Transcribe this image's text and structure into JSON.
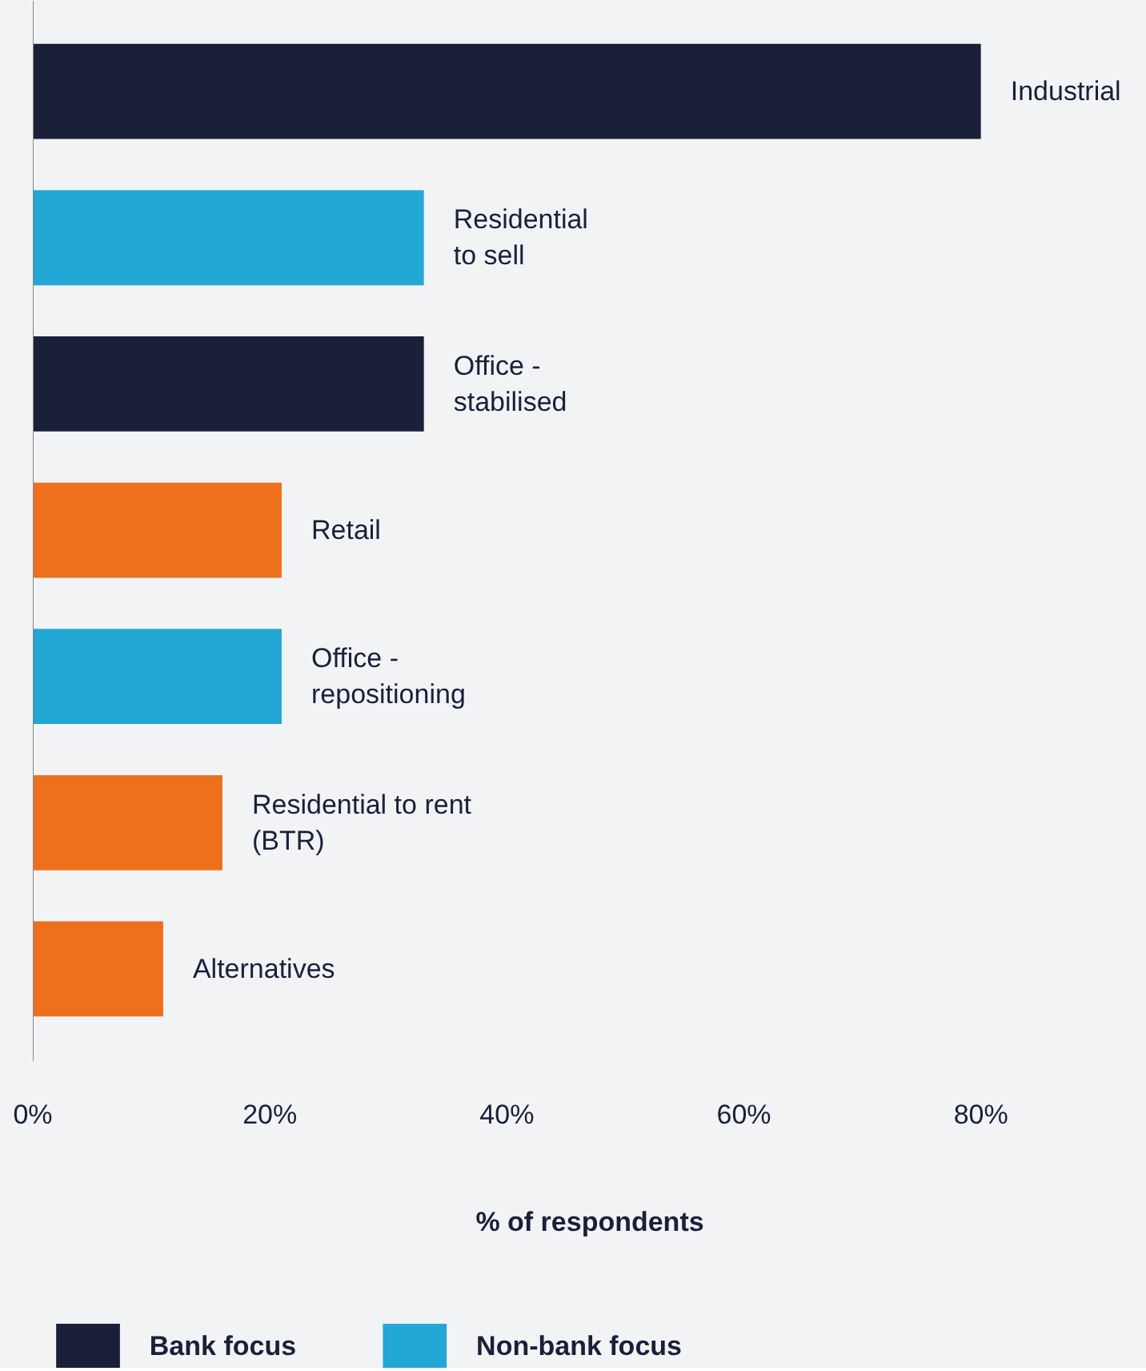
{
  "chart_data": {
    "type": "bar",
    "orientation": "horizontal",
    "xlabel": "% of respondents",
    "categories": [
      "Industrial",
      "Residential\nto sell",
      "Office -\nstabilised",
      "Retail",
      "Office -\nrepositioning",
      "Residential to rent\n(BTR)",
      "Alternatives"
    ],
    "series": [
      {
        "name": "Bank focus",
        "color": "#1a1f3a",
        "values": [
          80,
          null,
          33,
          null,
          null,
          null,
          null
        ]
      },
      {
        "name": "Non-bank focus",
        "color": "#23a7d4",
        "values": [
          null,
          33,
          null,
          null,
          21,
          null,
          null
        ]
      },
      {
        "color": "#ee6f1c",
        "values": [
          null,
          null,
          null,
          21,
          null,
          16,
          11
        ]
      }
    ],
    "xlim": [
      0,
      94
    ],
    "xticks": [
      {
        "value": 0,
        "label": "0%"
      },
      {
        "value": 20,
        "label": "20%"
      },
      {
        "value": 40,
        "label": "40%"
      },
      {
        "value": 60,
        "label": "60%"
      },
      {
        "value": 80,
        "label": "80%"
      }
    ],
    "grid": false,
    "legend": "bottom"
  }
}
